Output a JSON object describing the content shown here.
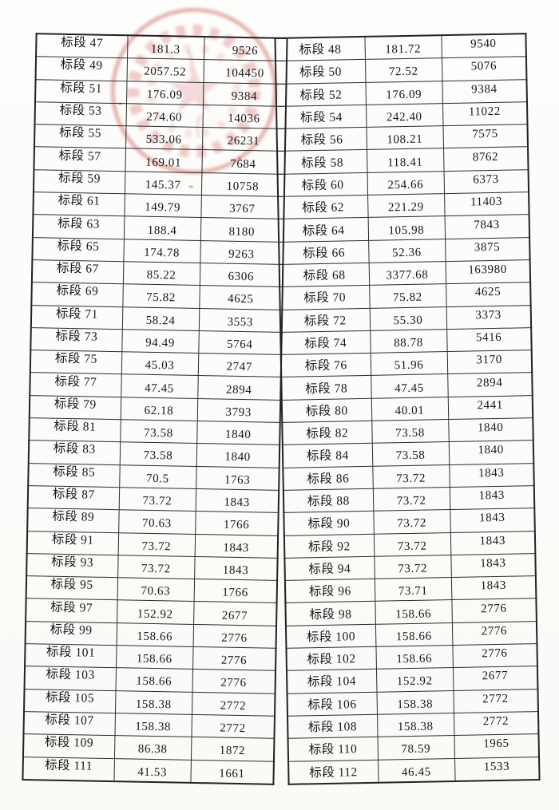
{
  "document": {
    "kind": "scanned-table-page",
    "section_label_prefix": "标段"
  },
  "stamp": {
    "name": "red-circular-official-seal",
    "color": "#c43b2d",
    "text_legible": false
  },
  "table": {
    "columns": [
      "section",
      "area_value",
      "amount_value",
      "section",
      "area_value",
      "amount_value"
    ],
    "rows": [
      [
        "标段 47",
        "181.3",
        "9526",
        "标段 48",
        "181.72",
        "9540"
      ],
      [
        "标段 49",
        "2057.52",
        "104450",
        "标段 50",
        "72.52",
        "5076"
      ],
      [
        "标段 51",
        "176.09",
        "9384",
        "标段 52",
        "176.09",
        "9384"
      ],
      [
        "标段 53",
        "274.60",
        "14036",
        "标段 54",
        "242.40",
        "11022"
      ],
      [
        "标段 55",
        "533.06",
        "26231",
        "标段 56",
        "108.21",
        "7575"
      ],
      [
        "标段 57",
        "169.01",
        "7684",
        "标段 58",
        "118.41",
        "8762"
      ],
      [
        "标段 59",
        "145.37",
        "10758",
        "标段 60",
        "254.66",
        "6373"
      ],
      [
        "标段 61",
        "149.79",
        "3767",
        "标段 62",
        "221.29",
        "11403"
      ],
      [
        "标段 63",
        "188.4",
        "8180",
        "标段 64",
        "105.98",
        "7843"
      ],
      [
        "标段 65",
        "174.78",
        "9263",
        "标段 66",
        "52.36",
        "3875"
      ],
      [
        "标段 67",
        "85.22",
        "6306",
        "标段 68",
        "3377.68",
        "163980"
      ],
      [
        "标段 69",
        "75.82",
        "4625",
        "标段 70",
        "75.82",
        "4625"
      ],
      [
        "标段 71",
        "58.24",
        "3553",
        "标段 72",
        "55.30",
        "3373"
      ],
      [
        "标段 73",
        "94.49",
        "5764",
        "标段 74",
        "88.78",
        "5416"
      ],
      [
        "标段 75",
        "45.03",
        "2747",
        "标段 76",
        "51.96",
        "3170"
      ],
      [
        "标段 77",
        "47.45",
        "2894",
        "标段 78",
        "47.45",
        "2894"
      ],
      [
        "标段 79",
        "62.18",
        "3793",
        "标段 80",
        "40.01",
        "2441"
      ],
      [
        "标段 81",
        "73.58",
        "1840",
        "标段 82",
        "73.58",
        "1840"
      ],
      [
        "标段 83",
        "73.58",
        "1840",
        "标段 84",
        "73.58",
        "1840"
      ],
      [
        "标段 85",
        "70.5",
        "1763",
        "标段 86",
        "73.72",
        "1843"
      ],
      [
        "标段 87",
        "73.72",
        "1843",
        "标段 88",
        "73.72",
        "1843"
      ],
      [
        "标段 89",
        "70.63",
        "1766",
        "标段 90",
        "73.72",
        "1843"
      ],
      [
        "标段 91",
        "73.72",
        "1843",
        "标段 92",
        "73.72",
        "1843"
      ],
      [
        "标段 93",
        "73.72",
        "1843",
        "标段 94",
        "73.72",
        "1843"
      ],
      [
        "标段 95",
        "70.63",
        "1766",
        "标段 96",
        "73.71",
        "1843"
      ],
      [
        "标段 97",
        "152.92",
        "2677",
        "标段 98",
        "158.66",
        "2776"
      ],
      [
        "标段 99",
        "158.66",
        "2776",
        "标段 100",
        "158.66",
        "2776"
      ],
      [
        "标段 101",
        "158.66",
        "2776",
        "标段 102",
        "158.66",
        "2776"
      ],
      [
        "标段 103",
        "158.66",
        "2776",
        "标段 104",
        "152.92",
        "2677"
      ],
      [
        "标段 105",
        "158.38",
        "2772",
        "标段 106",
        "158.38",
        "2772"
      ],
      [
        "标段 107",
        "158.38",
        "2772",
        "标段 108",
        "158.38",
        "2772"
      ],
      [
        "标段 109",
        "86.38",
        "1872",
        "标段 110",
        "78.59",
        "1965"
      ],
      [
        "标段 111",
        "41.53",
        "1661",
        "标段 112",
        "46.45",
        "1533"
      ]
    ]
  }
}
